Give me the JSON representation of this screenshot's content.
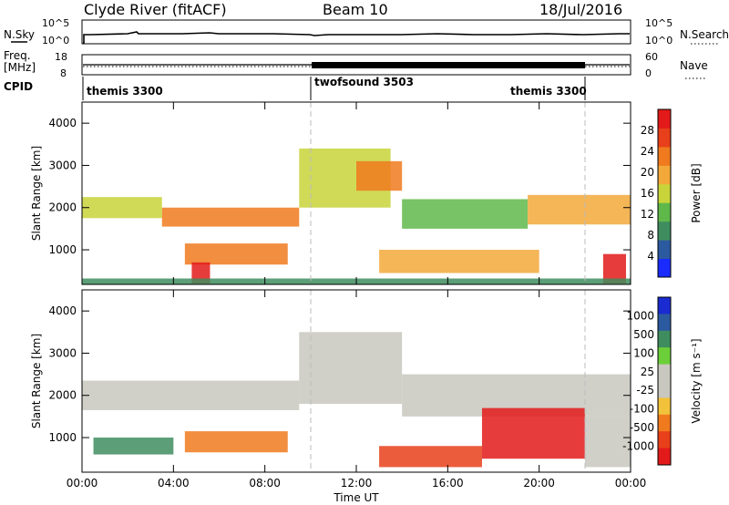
{
  "header": {
    "site": "Clyde River (fitACF)",
    "beam": "Beam 10",
    "date": "18/Jul/2016"
  },
  "noise_panel": {
    "left_label": "N.Sky",
    "right_label": "N.Search",
    "ticks_top": "10^5",
    "ticks_bottom": "10^0"
  },
  "freq_panel": {
    "left_label_1": "Freq.",
    "left_label_2": "[MHz]",
    "left_top": "18",
    "left_bottom": "8",
    "right_label": "Nave",
    "right_top": "60",
    "right_bottom": "0"
  },
  "cpid_panel": {
    "label": "CPID",
    "segments": [
      "themis 3300",
      "twofsound 3503",
      "themis 3300"
    ]
  },
  "chart_data": [
    {
      "type": "heatmap",
      "title": "",
      "xlabel": "",
      "ylabel": "Slant Range [km]",
      "xlim": [
        0,
        24
      ],
      "ylim": [
        180,
        4500
      ],
      "x_ticks": [
        "00:00",
        "04:00",
        "08:00",
        "12:00",
        "16:00",
        "20:00",
        "00:00"
      ],
      "y_ticks": [
        "1000",
        "2000",
        "3000",
        "4000"
      ],
      "colorbar_label": "Power [dB]",
      "colorbar_ticks": [
        "4",
        "8",
        "12",
        "16",
        "20",
        "24",
        "28"
      ],
      "colorbar_colors": [
        "#1a2bff",
        "#2c5aa0",
        "#3f8d5f",
        "#5fb84a",
        "#c8d43a",
        "#f2a93a",
        "#f07a1e",
        "#e8401a",
        "#e31a1a"
      ],
      "regions": [
        {
          "x0": 0.0,
          "x1": 3.5,
          "y0": 1750,
          "y1": 2250,
          "level": 4
        },
        {
          "x0": 3.5,
          "x1": 9.5,
          "y0": 1550,
          "y1": 2000,
          "level": 6
        },
        {
          "x0": 9.5,
          "x1": 13.5,
          "y0": 2000,
          "y1": 3400,
          "level": 4
        },
        {
          "x0": 12.0,
          "x1": 14.0,
          "y0": 2400,
          "y1": 3100,
          "level": 6
        },
        {
          "x0": 14.0,
          "x1": 19.5,
          "y0": 1500,
          "y1": 2200,
          "level": 3
        },
        {
          "x0": 19.5,
          "x1": 24.0,
          "y0": 1600,
          "y1": 2300,
          "level": 5
        },
        {
          "x0": 4.5,
          "x1": 9.0,
          "y0": 650,
          "y1": 1150,
          "level": 6
        },
        {
          "x0": 4.8,
          "x1": 5.6,
          "y0": 200,
          "y1": 700,
          "level": 8
        },
        {
          "x0": 13.0,
          "x1": 20.0,
          "y0": 450,
          "y1": 1000,
          "level": 5
        },
        {
          "x0": 22.8,
          "x1": 23.8,
          "y0": 200,
          "y1": 900,
          "level": 8
        },
        {
          "x0": 0.0,
          "x1": 24.0,
          "y0": 180,
          "y1": 320,
          "level": 2
        }
      ]
    },
    {
      "type": "heatmap",
      "title": "",
      "xlabel": "Time UT",
      "ylabel": "Slant Range [km]",
      "xlim": [
        0,
        24
      ],
      "ylim": [
        180,
        4500
      ],
      "x_ticks": [
        "00:00",
        "04:00",
        "08:00",
        "12:00",
        "16:00",
        "20:00",
        "00:00"
      ],
      "y_ticks": [
        "1000",
        "2000",
        "3000",
        "4000"
      ],
      "colorbar_label": "Velocity [m s⁻¹]",
      "colorbar_ticks": [
        "1000",
        "500",
        "100",
        "25",
        "-25",
        "-100",
        "-500",
        "-1000"
      ],
      "colorbar_colors": [
        "#1a2bd1",
        "#2c5aa0",
        "#3f8d5f",
        "#6ccf3a",
        "#c8c8c0",
        "#c8c8c0",
        "#f2c23a",
        "#f07a1e",
        "#e8401a",
        "#e31a1a"
      ],
      "regions": [
        {
          "x0": 0.0,
          "x1": 9.5,
          "y0": 1650,
          "y1": 2350,
          "value": 0
        },
        {
          "x0": 9.5,
          "x1": 14.0,
          "y0": 1800,
          "y1": 3500,
          "value": 0
        },
        {
          "x0": 14.0,
          "x1": 24.0,
          "y0": 1500,
          "y1": 2500,
          "value": 0
        },
        {
          "x0": 4.5,
          "x1": 9.0,
          "y0": 650,
          "y1": 1150,
          "value": -200
        },
        {
          "x0": 0.5,
          "x1": 4.0,
          "y0": 600,
          "y1": 1000,
          "value": 150
        },
        {
          "x0": 13.0,
          "x1": 17.5,
          "y0": 300,
          "y1": 800,
          "value": -300
        },
        {
          "x0": 17.5,
          "x1": 22.0,
          "y0": 500,
          "y1": 1700,
          "value": -700
        },
        {
          "x0": 22.0,
          "x1": 24.0,
          "y0": 300,
          "y1": 1500,
          "value": 0
        }
      ]
    }
  ]
}
